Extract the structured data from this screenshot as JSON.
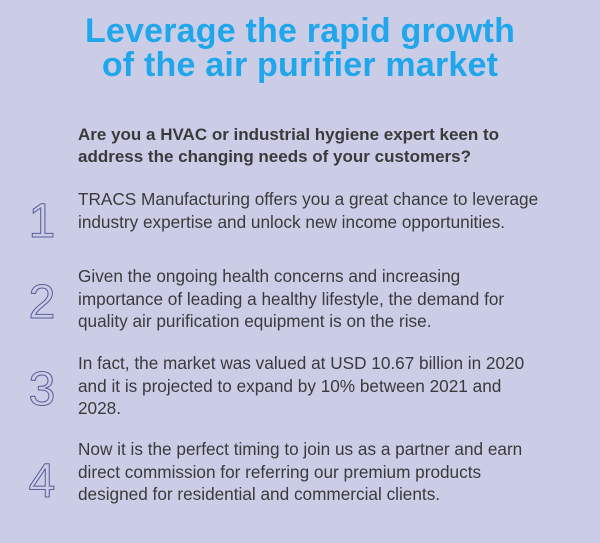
{
  "title": {
    "line1": "Leverage the rapid growth",
    "line2": "of the air purifier market"
  },
  "intro": "Are you a HVAC or industrial hygiene expert keen to address the changing needs of your customers?",
  "items": [
    {
      "number": "1",
      "text": "TRACS Manufacturing offers you a great chance to leverage industry expertise and unlock new income opportunities."
    },
    {
      "number": "2",
      "text": "Given the ongoing health concerns and increasing importance of leading a healthy lifestyle, the demand for quality air purification equipment is on the rise."
    },
    {
      "number": "3",
      "text": "In fact, the market was valued at USD 10.67 billion in 2020 and it is projected to expand by 10% between 2021 and 2028."
    },
    {
      "number": "4",
      "text": "Now it is the perfect timing to join us as a partner and earn direct commission for referring our premium products designed for residential and commercial clients."
    }
  ],
  "colors": {
    "background": "#cbcde6",
    "title": "#1fa6ec",
    "body_text": "#3a3a3c",
    "number_outline": "#5a5c9a"
  }
}
